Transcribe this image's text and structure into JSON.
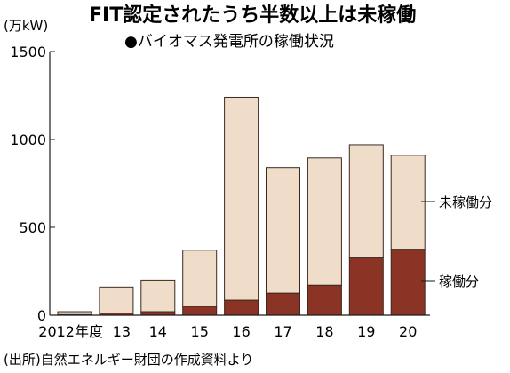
{
  "header": {
    "unit": "(万kW)",
    "title": "FIT認定されたうち半数以上は未稼働",
    "subtitle": "●バイオマス発電所の稼働状況"
  },
  "legend": {
    "unoperated": "未稼働分",
    "operated": "稼働分"
  },
  "source": "(出所)自然エネルギー財団の作成資料より",
  "colors": {
    "operated": "#8b3426",
    "unoperated": "#efdcc9",
    "axis": "#1a1a1a",
    "grid": "#1a1a1a"
  },
  "chart_data": {
    "type": "bar",
    "stacked": true,
    "categories": [
      "2012年度",
      "13",
      "14",
      "15",
      "16",
      "17",
      "18",
      "19",
      "20"
    ],
    "series": [
      {
        "name": "稼働分",
        "values": [
          3,
          12,
          20,
          50,
          85,
          125,
          170,
          330,
          375
        ]
      },
      {
        "name": "未稼働分",
        "values": [
          17,
          148,
          180,
          320,
          1155,
          715,
          725,
          640,
          535
        ]
      }
    ],
    "totals": [
      20,
      160,
      200,
      370,
      1240,
      840,
      895,
      970,
      910
    ],
    "ylim": [
      0,
      1500
    ],
    "yticks": [
      0,
      500,
      1000,
      1500
    ],
    "grid": false
  }
}
